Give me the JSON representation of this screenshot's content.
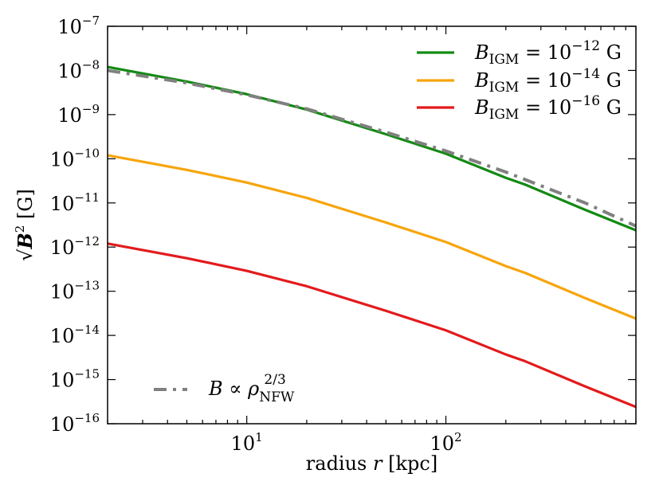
{
  "chart_data": {
    "type": "line",
    "title": "",
    "xscale": "log",
    "yscale": "log",
    "xlim": [
      2.0,
      900.0
    ],
    "ylim": [
      1e-16,
      1e-07
    ],
    "xlabel": {
      "prefix": "radius ",
      "var": "r",
      "suffix": " [kpc]"
    },
    "ylabel": {
      "root": "√",
      "var": "B",
      "exp": "2",
      "suffix": " [G]"
    },
    "x_ticks": [
      {
        "base": "10",
        "exp": "1",
        "value": 10
      },
      {
        "base": "10",
        "exp": "2",
        "value": 100
      }
    ],
    "y_ticks": [
      {
        "base": "10",
        "exp": "−16",
        "value": 1e-16
      },
      {
        "base": "10",
        "exp": "−15",
        "value": 1e-15
      },
      {
        "base": "10",
        "exp": "−14",
        "value": 1e-14
      },
      {
        "base": "10",
        "exp": "−13",
        "value": 1e-13
      },
      {
        "base": "10",
        "exp": "−12",
        "value": 1e-12
      },
      {
        "base": "10",
        "exp": "−11",
        "value": 1e-11
      },
      {
        "base": "10",
        "exp": "−10",
        "value": 1e-10
      },
      {
        "base": "10",
        "exp": "−9",
        "value": 1e-09
      },
      {
        "base": "10",
        "exp": "−8",
        "value": 1e-08
      },
      {
        "base": "10",
        "exp": "−7",
        "value": 1e-07
      }
    ],
    "series": [
      {
        "name": "B_IGM = 10^-12 G",
        "label": {
          "sym": "B",
          "sub": "IGM",
          "mid": " = 10",
          "exp": "−12",
          "unit": " G"
        },
        "color": "#138a13",
        "style": "solid",
        "x": [
          2.0,
          5.0,
          10.0,
          20.0,
          50.0,
          100.0,
          200.0,
          250.0,
          500.0,
          900.0
        ],
        "y": [
          1.2e-08,
          5.6e-09,
          2.9e-09,
          1.3e-09,
          3.6e-10,
          1.3e-10,
          3.7e-11,
          2.6e-11,
          7e-12,
          2.4e-12
        ]
      },
      {
        "name": "B_IGM = 10^-14 G",
        "label": {
          "sym": "B",
          "sub": "IGM",
          "mid": " = 10",
          "exp": "−14",
          "unit": " G"
        },
        "color": "#f7a50c",
        "style": "solid",
        "x": [
          2.0,
          5.0,
          10.0,
          20.0,
          50.0,
          100.0,
          200.0,
          250.0,
          500.0,
          900.0
        ],
        "y": [
          1.2e-10,
          5.6e-11,
          2.9e-11,
          1.3e-11,
          3.6e-12,
          1.3e-12,
          3.7e-13,
          2.6e-13,
          7e-14,
          2.4e-14
        ]
      },
      {
        "name": "B_IGM = 10^-16 G",
        "label": {
          "sym": "B",
          "sub": "IGM",
          "mid": " = 10",
          "exp": "−16",
          "unit": " G"
        },
        "color": "#e31a1c",
        "style": "solid",
        "x": [
          2.0,
          5.0,
          10.0,
          20.0,
          50.0,
          100.0,
          200.0,
          250.0,
          500.0,
          900.0
        ],
        "y": [
          1.2e-12,
          5.6e-13,
          2.9e-13,
          1.3e-13,
          3.6e-14,
          1.3e-14,
          3.7e-15,
          2.6e-15,
          7e-16,
          2.4e-16
        ]
      },
      {
        "name": "B ∝ ρ_NFW^(2/3)",
        "label": {
          "sym": "B ∝ ρ",
          "sub": "NFW",
          "exp": "2/3"
        },
        "color": "#808080",
        "style": "dashdot",
        "x": [
          2.0,
          5.0,
          10.0,
          20.0,
          50.0,
          100.0,
          200.0,
          500.0,
          900.0
        ],
        "y": [
          1e-08,
          5.2e-09,
          2.8e-09,
          1.35e-09,
          4e-10,
          1.5e-10,
          5e-11,
          1e-11,
          3e-12
        ]
      }
    ],
    "legends": [
      {
        "position": "top-right",
        "series": [
          0,
          1,
          2
        ]
      },
      {
        "position": "bottom-left",
        "series": [
          3
        ]
      }
    ]
  }
}
